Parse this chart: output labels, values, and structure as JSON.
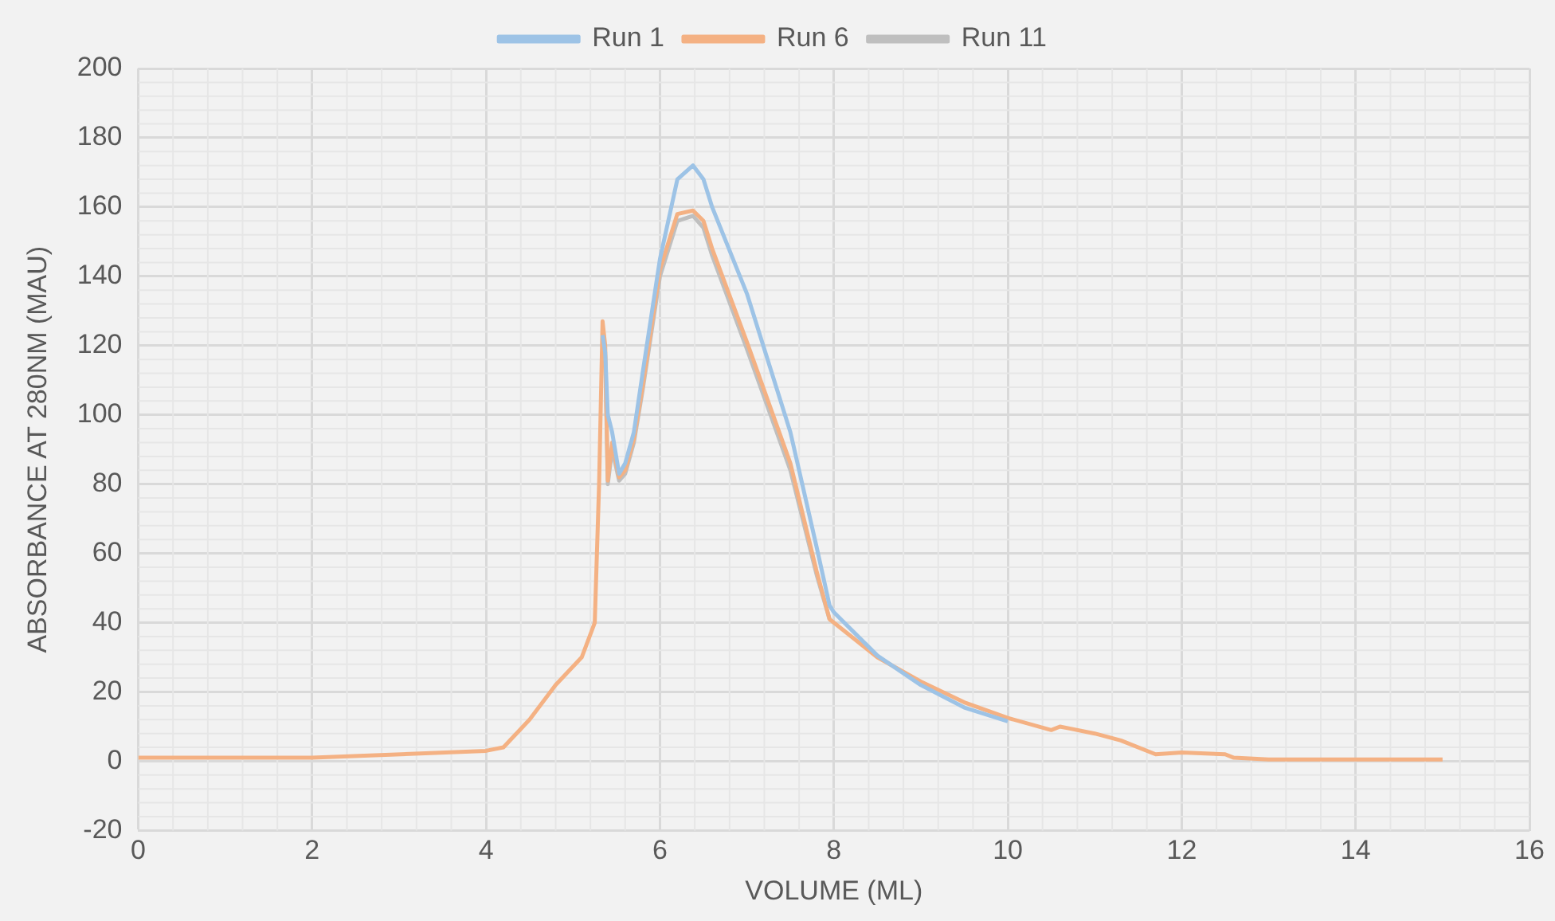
{
  "chart_data": {
    "type": "line",
    "xlabel": "VOLUME (ML)",
    "ylabel": "ABSORBANCE AT 280NM (MAU)",
    "xlim": [
      0,
      16
    ],
    "xticks": [
      0,
      2,
      4,
      6,
      8,
      10,
      12,
      14,
      16
    ],
    "ylim": [
      -20,
      200
    ],
    "yticks": [
      -20,
      0,
      20,
      40,
      60,
      80,
      100,
      120,
      140,
      160,
      180,
      200
    ],
    "grid": true,
    "legend": "top",
    "marker": "none",
    "line_style": "solid",
    "x": [
      0,
      2,
      4,
      4.2,
      4.5,
      4.8,
      5.1,
      5.25,
      5.3,
      5.34,
      5.37,
      5.4,
      5.45,
      5.53,
      5.6,
      5.7,
      5.8,
      6.0,
      6.2,
      6.38,
      6.5,
      6.6,
      7.0,
      7.5,
      7.8,
      7.95,
      8.0,
      8.5,
      9.0,
      9.5,
      10,
      10.5,
      10.6,
      10.7,
      11,
      11.3,
      11.7,
      12.0,
      12.5,
      12.6,
      13,
      15
    ],
    "series": [
      {
        "name": "Run 1",
        "color": "#9dc3e6",
        "values": [
          null,
          null,
          null,
          null,
          null,
          null,
          null,
          null,
          null,
          123,
          118,
          100,
          95,
          83,
          86,
          95,
          112,
          145,
          168,
          172,
          168,
          160,
          135,
          95,
          62,
          45,
          43,
          30.5,
          22,
          15.5,
          11.5,
          null,
          null,
          null,
          null,
          null,
          null,
          null,
          null,
          null,
          null,
          null
        ]
      },
      {
        "name": "Run 6",
        "color": "#f4b183",
        "values": [
          1,
          1,
          3,
          4,
          12,
          22,
          30,
          40,
          80,
          127,
          120,
          81,
          92,
          82,
          84,
          93,
          108,
          142,
          158,
          159,
          156,
          148,
          121,
          86,
          55,
          41,
          40,
          30,
          23,
          17,
          12.5,
          9,
          10,
          9.5,
          8,
          6,
          2,
          2.5,
          2,
          1,
          0.5,
          0.5
        ]
      },
      {
        "name": "Run 11",
        "color": "#bfbfbf",
        "values": [
          null,
          null,
          null,
          null,
          null,
          null,
          null,
          null,
          null,
          125,
          117,
          80,
          90,
          81,
          83,
          92,
          107,
          140,
          156,
          157.5,
          154,
          146,
          119,
          84,
          54,
          41,
          null,
          null,
          null,
          null,
          null,
          null,
          null,
          null,
          null,
          null,
          null,
          null,
          null,
          null,
          null,
          null
        ]
      }
    ]
  }
}
